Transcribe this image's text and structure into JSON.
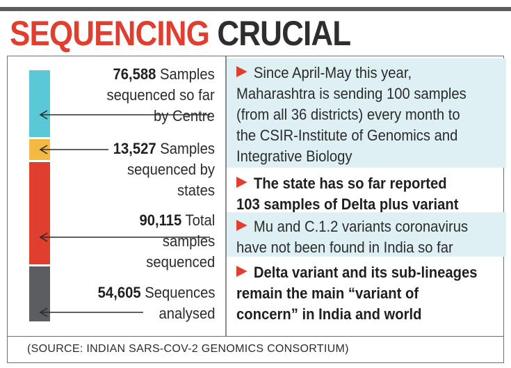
{
  "title": {
    "word1": "SEQUENCING",
    "word2": "CRUCIAL"
  },
  "chart_data": {
    "type": "bar",
    "categories": [
      "Samples sequenced so far by Centre",
      "Samples sequenced by states",
      "Total samples sequenced",
      "Sequences analysed"
    ],
    "values": [
      76588,
      13527,
      90115,
      54605
    ],
    "colors": [
      "#5bc8d8",
      "#f4b942",
      "#e03e2f",
      "#5c5c63"
    ]
  },
  "stats": [
    {
      "value": "76,588",
      "lines": [
        " Samples",
        "sequenced so far",
        "by Centre"
      ]
    },
    {
      "value": "13,527",
      "lines": [
        " Samples",
        "sequenced by",
        "states"
      ]
    },
    {
      "value": "90,115",
      "lines": [
        " Total",
        "samples",
        "sequenced"
      ]
    },
    {
      "value": "54,605",
      "lines": [
        " Sequences",
        "analysed"
      ]
    }
  ],
  "facts": [
    {
      "lines": [
        "Since April-May this year,",
        "Maharashtra is sending 100 samples",
        "(from all 36 districts) every month to",
        "the CSIR-Institute of Genomics and",
        "Integrative Biology"
      ]
    },
    {
      "lines": [
        "The state has so far reported",
        "103 samples of Delta plus variant"
      ]
    },
    {
      "lines": [
        "Mu and C.1.2 variants coronavirus",
        "have not been found in India so far"
      ]
    },
    {
      "lines": [
        "Delta variant and its sub-lineages",
        "remain the main “variant of",
        "concern” in India and world"
      ]
    }
  ],
  "source": "(SOURCE: INDIAN SARS-COV-2 GENOMICS CONSORTIUM)"
}
